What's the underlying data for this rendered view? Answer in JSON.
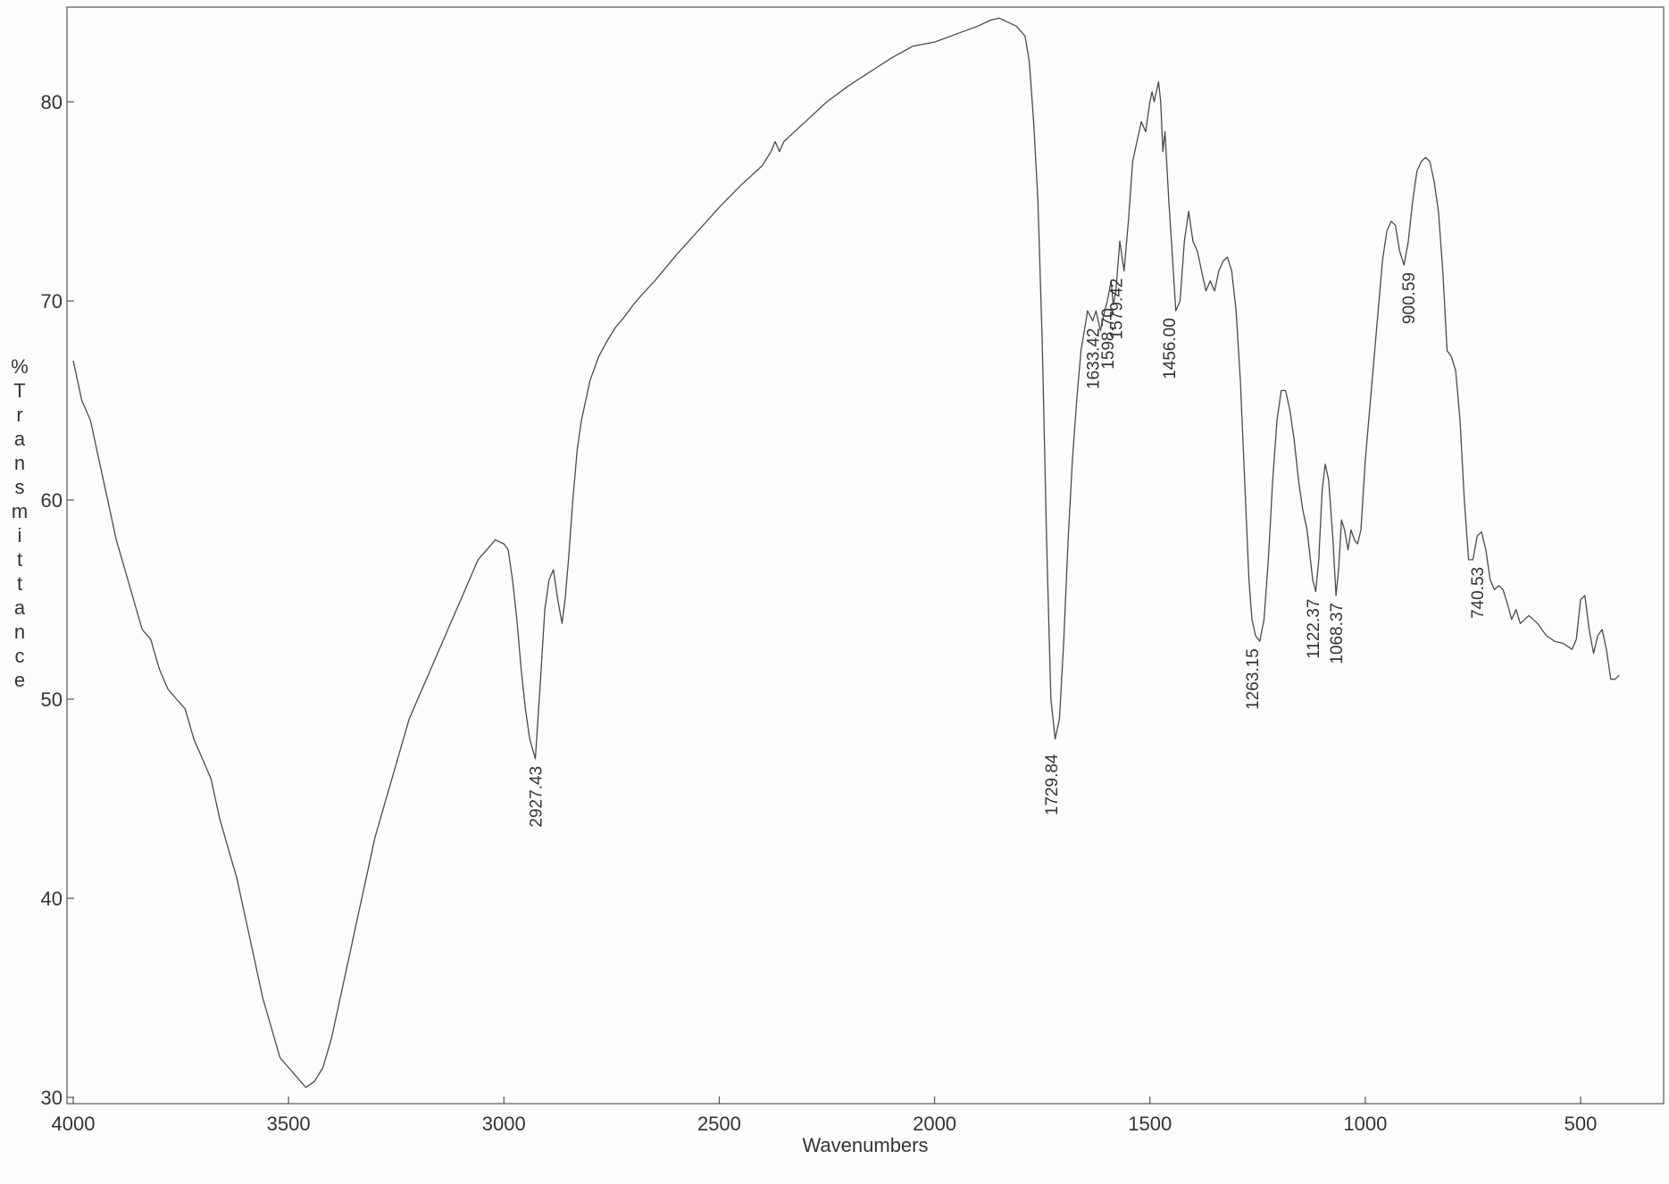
{
  "chart_data": {
    "type": "line",
    "title": "",
    "xlabel": "Wavenumbers",
    "ylabel": "% Transmittance",
    "xlim": [
      4000,
      400
    ],
    "ylim": [
      29.5,
      84.5
    ],
    "x_reversed": true,
    "grid": false,
    "x_ticks": [
      4000,
      3500,
      3000,
      2500,
      2000,
      1500,
      1000,
      500
    ],
    "y_ticks": [
      30,
      40,
      50,
      60,
      70,
      80
    ],
    "series": [
      {
        "x": [
          4000,
          3980,
          3960,
          3940,
          3920,
          3900,
          3880,
          3860,
          3840,
          3820,
          3800,
          3780,
          3760,
          3740,
          3720,
          3700,
          3680,
          3660,
          3640,
          3620,
          3600,
          3580,
          3560,
          3540,
          3520,
          3500,
          3480,
          3460,
          3440,
          3420,
          3400,
          3380,
          3360,
          3340,
          3320,
          3300,
          3280,
          3260,
          3240,
          3220,
          3200,
          3180,
          3160,
          3140,
          3120,
          3100,
          3080,
          3060,
          3040,
          3020,
          3000,
          2990,
          2980,
          2970,
          2960,
          2950,
          2940,
          2927,
          2915,
          2905,
          2895,
          2885,
          2875,
          2865,
          2858,
          2850,
          2840,
          2830,
          2820,
          2810,
          2800,
          2780,
          2760,
          2740,
          2720,
          2700,
          2680,
          2650,
          2600,
          2550,
          2500,
          2450,
          2400,
          2380,
          2370,
          2360,
          2350,
          2340,
          2300,
          2250,
          2200,
          2150,
          2100,
          2050,
          2000,
          1950,
          1900,
          1870,
          1850,
          1830,
          1810,
          1790,
          1780,
          1770,
          1760,
          1750,
          1740,
          1730,
          1720,
          1710,
          1700,
          1690,
          1680,
          1670,
          1660,
          1650,
          1645,
          1633,
          1625,
          1615,
          1605,
          1599,
          1590,
          1585,
          1579,
          1570,
          1560,
          1550,
          1540,
          1530,
          1520,
          1510,
          1500,
          1495,
          1490,
          1485,
          1480,
          1475,
          1470,
          1465,
          1456,
          1450,
          1440,
          1430,
          1420,
          1410,
          1400,
          1390,
          1380,
          1370,
          1360,
          1350,
          1340,
          1330,
          1320,
          1310,
          1300,
          1290,
          1280,
          1270,
          1263,
          1255,
          1245,
          1235,
          1225,
          1215,
          1205,
          1195,
          1185,
          1175,
          1165,
          1155,
          1145,
          1135,
          1122,
          1115,
          1108,
          1100,
          1093,
          1085,
          1075,
          1068,
          1062,
          1055,
          1048,
          1040,
          1033,
          1025,
          1018,
          1010,
          1000,
          990,
          980,
          970,
          960,
          950,
          940,
          930,
          920,
          910,
          900,
          890,
          880,
          870,
          860,
          850,
          840,
          830,
          820,
          810,
          800,
          790,
          780,
          770,
          760,
          750,
          740,
          730,
          720,
          710,
          700,
          690,
          680,
          670,
          660,
          650,
          640,
          620,
          600,
          580,
          560,
          540,
          520,
          510,
          500,
          490,
          480,
          470,
          460,
          450,
          440,
          430,
          420,
          410
        ],
        "y": [
          67,
          65,
          64,
          62,
          60,
          58,
          56.5,
          55,
          53.5,
          53,
          51.5,
          50.5,
          50,
          49.5,
          48,
          47,
          46,
          44,
          42.5,
          41,
          39,
          37,
          35,
          33.5,
          32,
          31.5,
          31,
          30.5,
          30.8,
          31.5,
          33,
          35,
          37,
          39,
          41,
          43,
          44.5,
          46,
          47.5,
          49,
          50,
          51,
          52,
          53,
          54,
          55,
          56,
          57,
          57.5,
          58,
          57.8,
          57.5,
          56,
          54,
          51.5,
          49.5,
          48,
          47,
          51,
          54.5,
          56,
          56.5,
          55,
          53.8,
          55,
          57,
          60,
          62.5,
          64,
          65,
          66,
          67.2,
          68,
          68.7,
          69.2,
          69.8,
          70.3,
          71,
          72.3,
          73.5,
          74.7,
          75.8,
          76.8,
          77.5,
          78,
          77.5,
          78,
          78.2,
          79,
          80,
          80.8,
          81.5,
          82.2,
          82.8,
          83,
          83.4,
          83.8,
          84.1,
          84.2,
          84,
          83.8,
          83.3,
          82,
          79,
          75,
          68,
          58,
          50,
          48,
          49,
          53,
          58,
          62,
          65,
          67.5,
          68.8,
          69.5,
          69,
          69.5,
          68.5,
          69.5,
          70,
          71,
          69.8,
          70.5,
          73,
          71.5,
          74,
          77,
          78,
          79,
          78.5,
          80,
          80.5,
          80,
          80.5,
          81,
          80,
          77.5,
          78.5,
          75,
          73,
          69.5,
          70,
          73,
          74.5,
          73,
          72.5,
          71.5,
          70.5,
          71,
          70.5,
          71.5,
          72,
          72.2,
          71.5,
          69.5,
          66,
          61,
          56,
          54,
          53.2,
          52.9,
          54,
          57,
          61,
          64,
          65.5,
          65.5,
          64.5,
          63,
          61,
          59.5,
          58.5,
          56,
          55.4,
          57,
          60.5,
          61.8,
          61,
          58,
          55.2,
          56.5,
          59,
          58.5,
          57.5,
          58.5,
          58,
          57.8,
          58.5,
          62,
          64.5,
          67,
          69.5,
          72,
          73.5,
          74,
          73.8,
          72.5,
          71.8,
          73,
          75,
          76.5,
          77,
          77.2,
          77,
          76,
          74.5,
          71.5,
          67.5,
          67.2,
          66.5,
          64,
          60,
          57,
          57,
          58.2,
          58.4,
          57.5,
          56,
          55.5,
          55.7,
          55.5,
          54.8,
          54,
          54.5,
          53.8,
          54.2,
          53.8,
          53.2,
          52.9,
          52.8,
          52.5,
          53,
          55,
          55.2,
          53.5,
          52.3,
          53.2,
          53.5,
          52.5,
          51,
          51,
          51.2
        ]
      }
    ],
    "annotations": [
      {
        "x": 2927.43,
        "y": 47,
        "text": "2927.43"
      },
      {
        "x": 1729.84,
        "y": 47.6,
        "text": "1729.84"
      },
      {
        "x": 1633.42,
        "y": 69,
        "text": "1633.42"
      },
      {
        "x": 1598.7,
        "y": 70,
        "text": "1598.70"
      },
      {
        "x": 1579.42,
        "y": 71.5,
        "text": "1579.42"
      },
      {
        "x": 1456.0,
        "y": 69.5,
        "text": "1456.00"
      },
      {
        "x": 1263.15,
        "y": 52.9,
        "text": "1263.15"
      },
      {
        "x": 1122.37,
        "y": 55.4,
        "text": "1122.37"
      },
      {
        "x": 1068.37,
        "y": 55.2,
        "text": "1068.37"
      },
      {
        "x": 900.59,
        "y": 71.8,
        "text": "900.59"
      },
      {
        "x": 740.53,
        "y": 57,
        "text": "740.53"
      }
    ]
  }
}
